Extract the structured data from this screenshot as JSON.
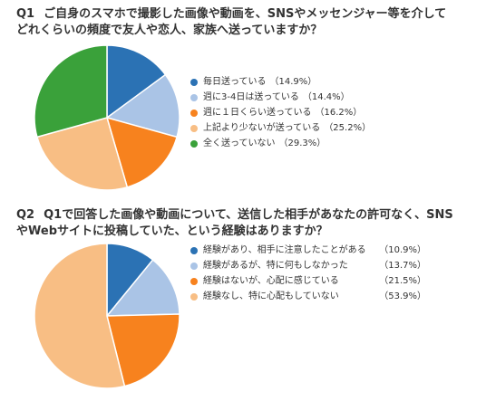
{
  "chart_data": [
    {
      "type": "pie",
      "question_label": "Q1",
      "title_lines": [
        "ご自身のスマホで撮影した画像や動画を、SNSやメッセンジャー等を介して",
        "どれくらいの頻度で友人や恋人、家族へ送っていますか？"
      ],
      "categories": [
        "毎日送っている",
        "週に3-4日は送っている",
        "週に１日くらい送っている",
        "上記より少ないが送っている",
        "全く送っていない"
      ],
      "values": [
        14.9,
        14.4,
        16.2,
        25.2,
        29.3
      ],
      "value_labels": [
        "（14.9%）",
        "（14.4%）",
        "（16.2%）",
        "（25.2%）",
        "（29.3%）"
      ],
      "colors": [
        "#2b72b4",
        "#aac4e6",
        "#f7821e",
        "#f8be84",
        "#3aa13a"
      ],
      "legend_position": "right"
    },
    {
      "type": "pie",
      "question_label": "Q2",
      "title_lines": [
        "Q1で回答した画像や動画について、送信した相手があなたの許可なく、SNS",
        "やWebサイトに投稿していた、という経験はありますか？"
      ],
      "categories": [
        "経験があり、相手に注意したことがある",
        "経験があるが、特に何もしなかった",
        "経験はないが、心配に感じている",
        "経験なし、特に心配もしていない"
      ],
      "values": [
        10.9,
        13.7,
        21.5,
        53.9
      ],
      "value_labels": [
        "（10.9%）",
        "（13.7%）",
        "（21.5%）",
        "（53.9%）"
      ],
      "colors": [
        "#2b72b4",
        "#aac4e6",
        "#f7821e",
        "#f8be84"
      ],
      "legend_position": "right"
    }
  ]
}
